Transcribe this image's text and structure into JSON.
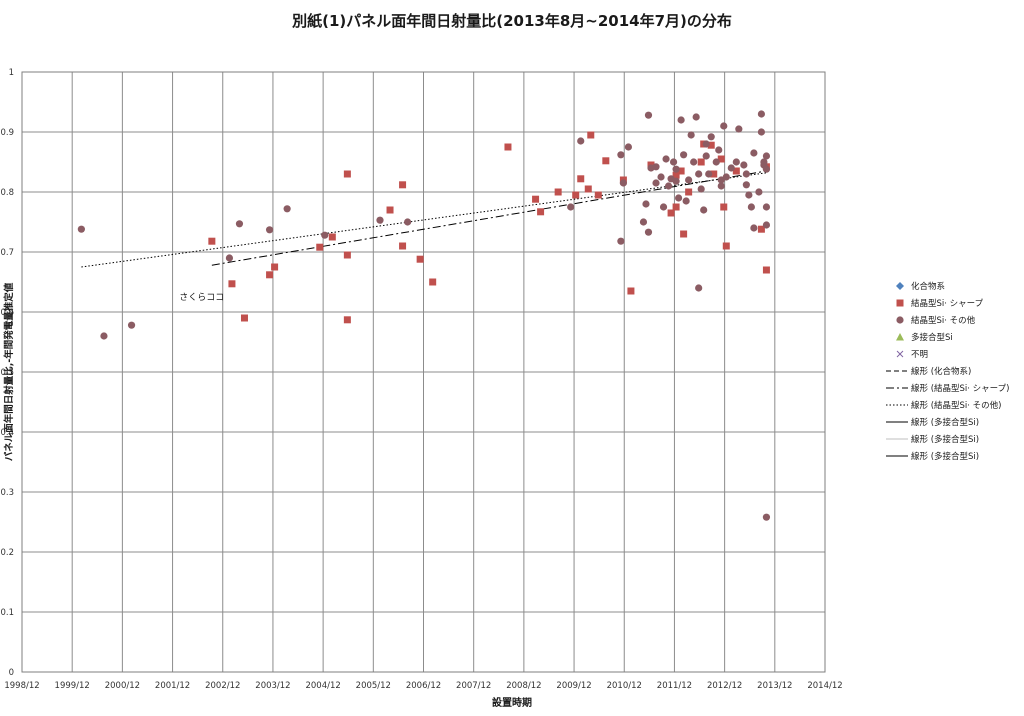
{
  "chart_data": {
    "type": "scatter",
    "title": "別紙(1)パネル面年間日射量比(2013年8月~2014年7月)の分布",
    "xlabel": "設置時期",
    "ylabel": "パネル面年間日射量比,-年間発電量推定値",
    "x_ticks": [
      "1998/12",
      "1999/12",
      "2000/12",
      "2001/12",
      "2002/12",
      "2003/12",
      "2004/12",
      "2005/12",
      "2006/12",
      "2007/12",
      "2008/12",
      "2009/12",
      "2010/12",
      "2011/12",
      "2012/12",
      "2013/12",
      "2014/12"
    ],
    "x_range": [
      1998.917,
      2014.917
    ],
    "y_ticks": [
      "0",
      "0.1",
      "0.2",
      "0.3",
      "0.4",
      "0.5",
      "0.6",
      "0.7",
      "0.8",
      "0.9",
      "1"
    ],
    "ylim": [
      0,
      1
    ],
    "grid": true,
    "legend_position": "right",
    "annotations": [
      {
        "text": "さくらココ",
        "x": 2002.05,
        "y": 0.62
      }
    ],
    "series": [
      {
        "name": "化合物系",
        "marker": "diamond",
        "color": "#4f81bd",
        "points": []
      },
      {
        "name": "結晶型Si· シャープ",
        "marker": "square",
        "color": "#c0504d",
        "points": [
          [
            2002.7,
            0.718
          ],
          [
            2003.1,
            0.647
          ],
          [
            2003.35,
            0.59
          ],
          [
            2003.85,
            0.662
          ],
          [
            2003.95,
            0.675
          ],
          [
            2004.85,
            0.708
          ],
          [
            2005.1,
            0.725
          ],
          [
            2005.4,
            0.83
          ],
          [
            2005.4,
            0.695
          ],
          [
            2005.4,
            0.587
          ],
          [
            2006.25,
            0.77
          ],
          [
            2006.5,
            0.812
          ],
          [
            2006.5,
            0.71
          ],
          [
            2006.85,
            0.688
          ],
          [
            2007.1,
            0.65
          ],
          [
            2008.6,
            0.875
          ],
          [
            2009.15,
            0.788
          ],
          [
            2009.25,
            0.767
          ],
          [
            2009.6,
            0.8
          ],
          [
            2009.95,
            0.795
          ],
          [
            2010.05,
            0.822
          ],
          [
            2010.2,
            0.805
          ],
          [
            2010.25,
            0.895
          ],
          [
            2010.4,
            0.795
          ],
          [
            2010.55,
            0.852
          ],
          [
            2010.9,
            0.82
          ],
          [
            2011.05,
            0.635
          ],
          [
            2011.45,
            0.845
          ],
          [
            2011.85,
            0.765
          ],
          [
            2011.95,
            0.775
          ],
          [
            2011.95,
            0.828
          ],
          [
            2012.05,
            0.835
          ],
          [
            2012.1,
            0.73
          ],
          [
            2012.2,
            0.8
          ],
          [
            2012.45,
            0.85
          ],
          [
            2012.5,
            0.88
          ],
          [
            2012.65,
            0.878
          ],
          [
            2012.7,
            0.83
          ],
          [
            2012.85,
            0.855
          ],
          [
            2012.9,
            0.775
          ],
          [
            2012.95,
            0.71
          ],
          [
            2013.15,
            0.835
          ],
          [
            2013.65,
            0.738
          ],
          [
            2013.75,
            0.842
          ],
          [
            2013.75,
            0.67
          ]
        ]
      },
      {
        "name": "結晶型Si· その他",
        "marker": "circle",
        "color": "#8b5c63",
        "points": [
          [
            2000.1,
            0.738
          ],
          [
            2000.55,
            0.56
          ],
          [
            2001.1,
            0.578
          ],
          [
            2003.05,
            0.69
          ],
          [
            2003.25,
            0.747
          ],
          [
            2003.85,
            0.737
          ],
          [
            2004.2,
            0.772
          ],
          [
            2004.95,
            0.728
          ],
          [
            2006.05,
            0.753
          ],
          [
            2006.6,
            0.75
          ],
          [
            2009.85,
            0.775
          ],
          [
            2010.05,
            0.885
          ],
          [
            2010.85,
            0.862
          ],
          [
            2010.85,
            0.718
          ],
          [
            2010.9,
            0.815
          ],
          [
            2011.0,
            0.875
          ],
          [
            2011.3,
            0.75
          ],
          [
            2011.35,
            0.78
          ],
          [
            2011.4,
            0.733
          ],
          [
            2011.4,
            0.928
          ],
          [
            2011.45,
            0.84
          ],
          [
            2011.55,
            0.815
          ],
          [
            2011.55,
            0.842
          ],
          [
            2011.65,
            0.825
          ],
          [
            2011.7,
            0.775
          ],
          [
            2011.75,
            0.855
          ],
          [
            2011.8,
            0.81
          ],
          [
            2011.85,
            0.822
          ],
          [
            2011.9,
            0.85
          ],
          [
            2011.95,
            0.818
          ],
          [
            2011.95,
            0.838
          ],
          [
            2012.0,
            0.79
          ],
          [
            2012.05,
            0.92
          ],
          [
            2012.1,
            0.862
          ],
          [
            2012.15,
            0.785
          ],
          [
            2012.2,
            0.82
          ],
          [
            2012.25,
            0.895
          ],
          [
            2012.3,
            0.85
          ],
          [
            2012.35,
            0.925
          ],
          [
            2012.4,
            0.83
          ],
          [
            2012.4,
            0.64
          ],
          [
            2012.45,
            0.805
          ],
          [
            2012.5,
            0.77
          ],
          [
            2012.55,
            0.88
          ],
          [
            2012.55,
            0.86
          ],
          [
            2012.6,
            0.83
          ],
          [
            2012.65,
            0.892
          ],
          [
            2012.75,
            0.85
          ],
          [
            2012.8,
            0.87
          ],
          [
            2012.85,
            0.81
          ],
          [
            2012.85,
            0.82
          ],
          [
            2012.9,
            0.91
          ],
          [
            2012.95,
            0.825
          ],
          [
            2013.05,
            0.84
          ],
          [
            2013.15,
            0.85
          ],
          [
            2013.2,
            0.905
          ],
          [
            2013.3,
            0.845
          ],
          [
            2013.35,
            0.83
          ],
          [
            2013.35,
            0.812
          ],
          [
            2013.4,
            0.795
          ],
          [
            2013.45,
            0.775
          ],
          [
            2013.5,
            0.74
          ],
          [
            2013.5,
            0.865
          ],
          [
            2013.6,
            0.8
          ],
          [
            2013.65,
            0.93
          ],
          [
            2013.65,
            0.9
          ],
          [
            2013.7,
            0.85
          ],
          [
            2013.7,
            0.845
          ],
          [
            2013.75,
            0.86
          ],
          [
            2013.75,
            0.838
          ],
          [
            2013.75,
            0.775
          ],
          [
            2013.75,
            0.745
          ],
          [
            2013.75,
            0.258
          ]
        ]
      },
      {
        "name": "多接合型Si",
        "marker": "triangle",
        "color": "#9bbb59",
        "points": []
      },
      {
        "name": "不明",
        "marker": "x",
        "color": "#8064a2",
        "points": []
      }
    ],
    "trendlines": [
      {
        "name": "線形 (化合物系)",
        "style": "dashed",
        "color": "#000000",
        "from": null,
        "to": null
      },
      {
        "name": "線形 (結晶型Si· シャープ)",
        "style": "dashdot",
        "color": "#000000",
        "from": [
          2002.7,
          0.678
        ],
        "to": [
          2013.75,
          0.835
        ]
      },
      {
        "name": "線形 (結晶型Si· その他)",
        "style": "dotted",
        "color": "#000000",
        "from": [
          2000.1,
          0.675
        ],
        "to": [
          2013.75,
          0.832
        ]
      },
      {
        "name": "線形 (多接合型Si)",
        "style": "solid",
        "color": "#000000",
        "from": null,
        "to": null
      },
      {
        "name": "線形 (多接合型Si)",
        "style": "solid",
        "color": "#bfbfbf",
        "from": null,
        "to": null
      },
      {
        "name": "線形 (多接合型Si)",
        "style": "solid",
        "color": "#000000",
        "from": null,
        "to": null
      }
    ]
  }
}
